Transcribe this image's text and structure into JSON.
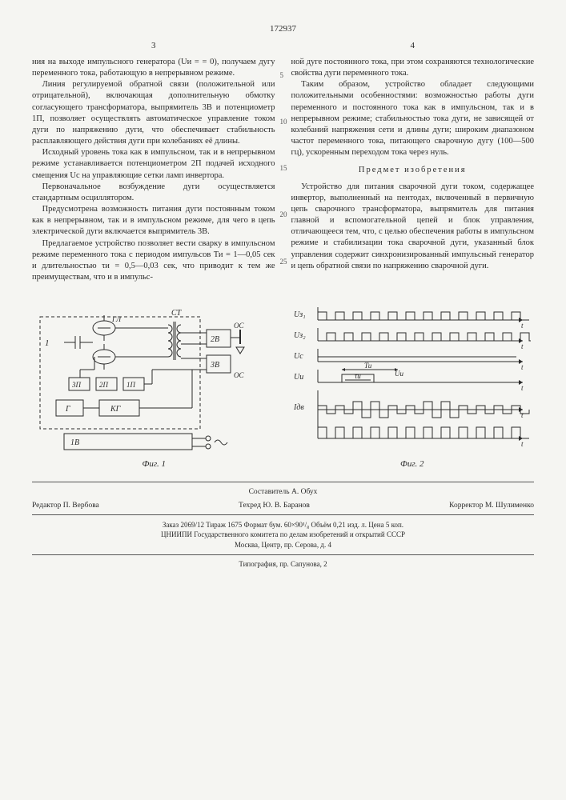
{
  "patent_number": "172937",
  "left_col_number": "3",
  "right_col_number": "4",
  "left_paragraphs": [
    "ния на выходе импульсного генератора (Uи = = 0), получаем дугу переменного тока, работающую в непрерывном режиме.",
    "Линия регулируемой обратной связи (положительной или отрицательной), включающая дополнительную обмотку согласующего трансформатора, выпрямитель 3В и потенциометр 1П, позволяет осуществлять автоматическое управление током дуги по напряжению дуги, что обеспечивает стабильность расплавляющего действия дуги при колебаниях её длины.",
    "Исходный уровень тока как в импульсном, так и в непрерывном режиме устанавливается потенциометром 2П подачей исходного смещения Uс на управляющие сетки ламп инвертора.",
    "Первоначальное возбуждение дуги осуществляется стандартным осциллятором.",
    "Предусмотрена возможность питания дуги постоянным током как в непрерывном, так и в импульсном режиме, для чего в цепь электрической дуги включается выпрямитель 3В.",
    "Предлагаемое устройство позволяет вести сварку в импульсном режиме переменного тока с периодом импульсов Ти = 1—0,05 сек и длительностью τи = 0,5—0,03 сек, что приводит к тем же преимуществам, что и в импульс-"
  ],
  "right_paragraphs_top": [
    "ной дуге постоянного тока, при этом сохраняются технологические свойства дуги переменного тока.",
    "Таким образом, устройство обладает следующими положительными особенностями: возможностью работы дуги переменного и постоянного тока как в импульсном, так и в непрерывном режиме; стабильностью тока дуги, не зависящей от колебаний напряжения сети и длины дуги; широким диапазоном частот переменного тока, питающего сварочную дугу (100—500 гц), ускоренным переходом тока через нуль."
  ],
  "subject_heading": "Предмет изобретения",
  "right_paragraphs_claim": [
    "Устройство для питания сварочной дуги током, содержащее инвертор, выполненный на пентодах, включенный в первичную цепь сварочного трансформатора, выпрямитель для питания главной и вспомогательной цепей и блок управления, отличающееся тем, что, с целью обеспечения работы в импульсном режиме и стабилизации тока сварочной дуги, указанный блок управления содержит синхронизированный импульсный генератор и цепь обратной связи по напряжению сварочной дуги."
  ],
  "line_marks": [
    "5",
    "10",
    "15",
    "20",
    "25"
  ],
  "fig1": {
    "caption": "Фиг. 1",
    "stroke": "#2a2a2a",
    "bg": "#f5f5f2",
    "labels": [
      "ГЛ",
      "2В",
      "3В",
      "ОС",
      "ОС",
      "СТ",
      "1",
      "3П",
      "2П",
      "1П",
      "Г",
      "КГ",
      "1В"
    ]
  },
  "fig2": {
    "caption": "Фиг. 2",
    "stroke": "#2a2a2a",
    "signals": [
      {
        "label": "Uз₁",
        "type": "pulse",
        "rows": 1,
        "period": 22,
        "duty": 0.5,
        "amp": 10
      },
      {
        "label": "Uз₂",
        "type": "pulse",
        "rows": 1,
        "period": 22,
        "duty": 0.5,
        "amp": 10,
        "phase": 11
      },
      {
        "label": "Uс",
        "type": "flat",
        "amp": 6
      },
      {
        "label": "Uи",
        "type": "single_pulse",
        "amp": 10,
        "start": 30,
        "width": 40,
        "annot_top": "Ти",
        "annot_in": "τи",
        "annot_right": "Uи"
      },
      {
        "label": "Iдв",
        "type": "bipolar",
        "period": 22,
        "amp": 10,
        "env_start": 30,
        "env_width": 40,
        "base": 5
      },
      {
        "label": "",
        "type": "pulse",
        "rows": 1,
        "period": 22,
        "duty": 0.5,
        "amp": 14
      }
    ]
  },
  "credits": {
    "compiler": "Составитель А. Обух",
    "editor": "Редактор П. Вербова",
    "techred": "Техред Ю. В. Баранов",
    "corrector": "Корректор М. Шулименко"
  },
  "imprint_lines": [
    "Заказ 2069/12   Тираж 1675   Формат бум. 60×90¹/₈   Объём 0,21 изд. л.   Цена 5 коп.",
    "ЦНИИПИ Государственного комитета по делам изобретений и открытий СССР",
    "Москва, Центр, пр. Серова, д. 4"
  ],
  "typography": "Типография, пр. Сапунова, 2"
}
